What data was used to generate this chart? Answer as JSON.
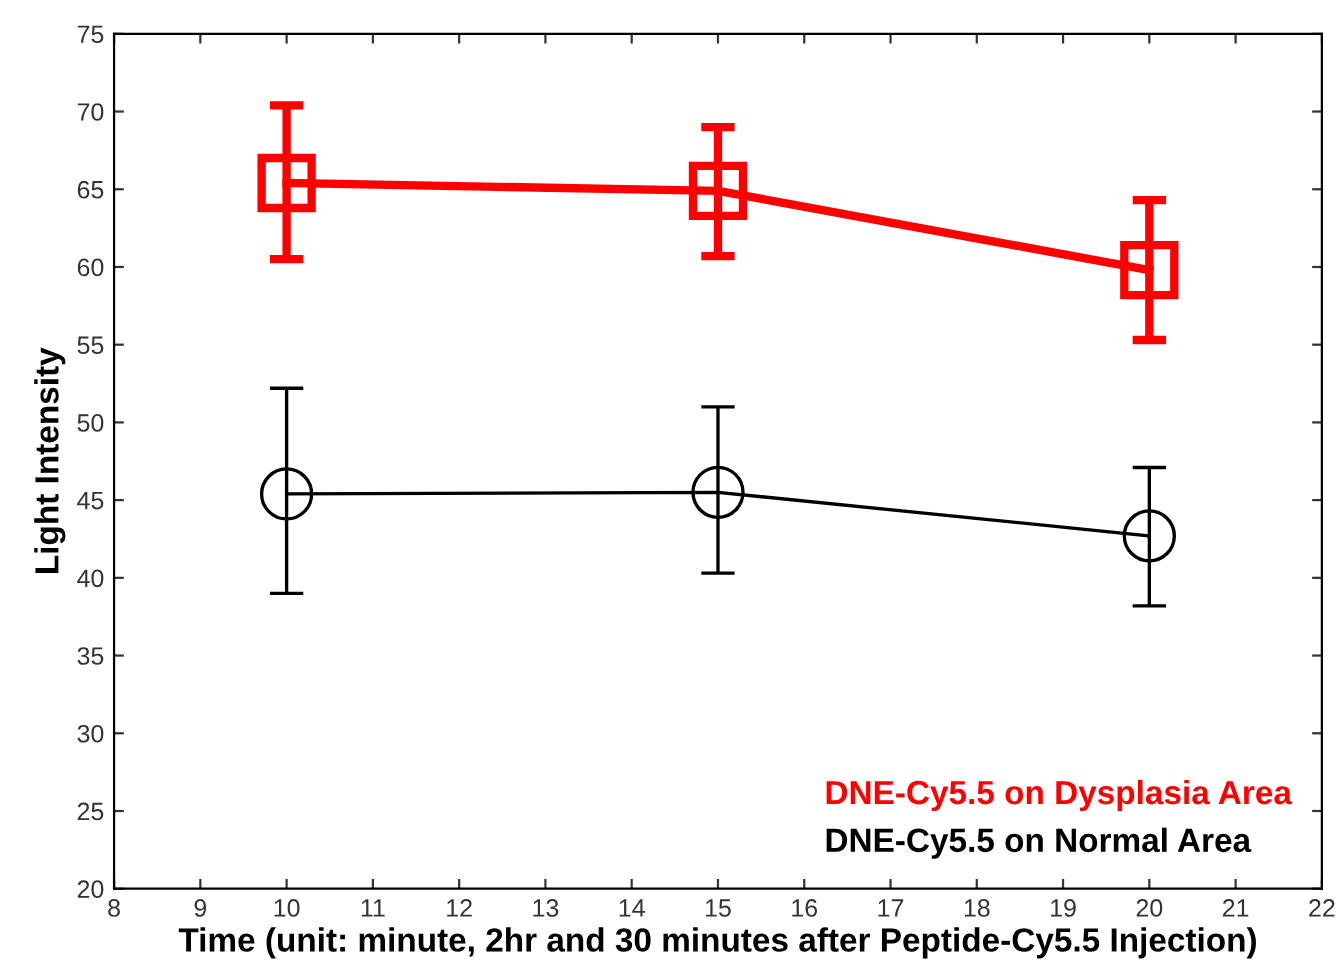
{
  "chart_data": {
    "type": "line",
    "xlabel": "Time (unit: minute, 2hr and 30 minutes after Peptide-Cy5.5 Injection)",
    "ylabel": "Light Intensity",
    "x": [
      10,
      15,
      20
    ],
    "series": [
      {
        "name": "DNE-Cy5.5 on Dysplasia Area",
        "color": "#ff0000",
        "marker": "square",
        "values": [
          65.4,
          64.9,
          59.8
        ],
        "errors": [
          [
            60.5,
            70.4
          ],
          [
            60.7,
            69.0
          ],
          [
            55.3,
            64.3
          ]
        ]
      },
      {
        "name": "DNE-Cy5.5 on Normal Area",
        "color": "#000000",
        "marker": "circle",
        "values": [
          45.4,
          45.5,
          42.7
        ],
        "errors": [
          [
            39.0,
            52.2
          ],
          [
            40.3,
            51.0
          ],
          [
            38.2,
            47.1
          ]
        ]
      }
    ],
    "xlim": [
      8,
      22
    ],
    "xticks": [
      8,
      9,
      10,
      11,
      12,
      13,
      14,
      15,
      16,
      17,
      18,
      19,
      20,
      21,
      22
    ],
    "ylim": [
      20,
      75
    ],
    "yticks": [
      20,
      25,
      30,
      35,
      40,
      45,
      50,
      55,
      60,
      65,
      70,
      75
    ],
    "grid": false,
    "legend": "bottom right",
    "line_style": "solid"
  }
}
